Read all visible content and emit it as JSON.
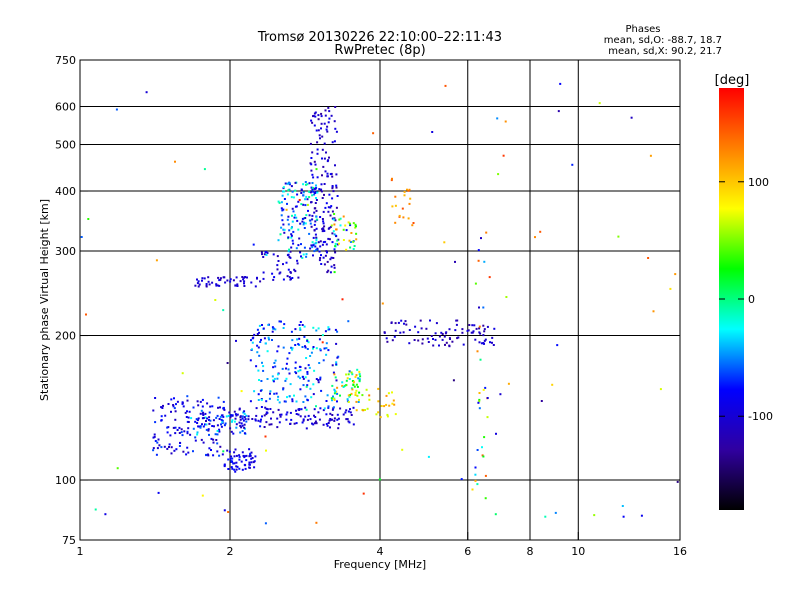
{
  "chart_data": {
    "type": "scatter",
    "title": "Tromsø 20130226 22:10:00–22:11:43",
    "subtitle": "RwPretec (8p)",
    "xlabel": "Frequency [MHz]",
    "ylabel": "Stationary phase Virtual Height [km]",
    "x_scale": "log",
    "y_scale": "log",
    "xlim": [
      1,
      16
    ],
    "ylim": [
      75,
      750
    ],
    "x_ticks": [
      1,
      2,
      4,
      6,
      8,
      10,
      16
    ],
    "y_ticks": [
      75,
      100,
      200,
      300,
      400,
      500,
      600,
      750
    ],
    "x_grid": [
      2,
      4,
      6,
      8,
      10
    ],
    "y_grid": [
      100,
      200,
      300,
      400,
      500,
      600
    ],
    "grid": true,
    "stats": {
      "heading": "Phases",
      "line_o": "mean, sd,O: -88.7, 18.7",
      "line_x": "mean, sd,X: 90.2, 21.7"
    },
    "colorbar": {
      "label": "[deg]",
      "min": -180,
      "max": 180,
      "ticks": [
        100,
        0,
        -100
      ],
      "colors": [
        "#ff0000",
        "#ff8000",
        "#ffff00",
        "#00ff00",
        "#00ffff",
        "#0000ff",
        "#3000a0",
        "#000000"
      ]
    },
    "clusters": [
      {
        "x": [
          1.95,
          2.25
        ],
        "y": [
          104,
          116
        ],
        "count": 60,
        "phase": [
          -110,
          -70
        ]
      },
      {
        "x": [
          1.4,
          1.95
        ],
        "y": [
          112,
          150
        ],
        "count": 140,
        "phase": [
          -120,
          -60
        ]
      },
      {
        "x": [
          1.6,
          2.2
        ],
        "y": [
          124,
          140
        ],
        "count": 60,
        "phase": [
          -110,
          -20
        ]
      },
      {
        "x": [
          2.0,
          3.6
        ],
        "y": [
          128,
          142
        ],
        "count": 130,
        "phase": [
          -120,
          -80
        ]
      },
      {
        "x": [
          2.2,
          2.9
        ],
        "y": [
          145,
          215
        ],
        "count": 140,
        "phase": [
          -100,
          -20
        ]
      },
      {
        "x": [
          2.8,
          3.3
        ],
        "y": [
          140,
          210
        ],
        "count": 70,
        "phase": [
          -110,
          0
        ]
      },
      {
        "x": [
          3.2,
          3.7
        ],
        "y": [
          145,
          170
        ],
        "count": 60,
        "phase": [
          -60,
          120
        ]
      },
      {
        "x": [
          3.5,
          4.4
        ],
        "y": [
          135,
          155
        ],
        "count": 30,
        "phase": [
          60,
          130
        ]
      },
      {
        "x": [
          1.7,
          2.3
        ],
        "y": [
          253,
          265
        ],
        "count": 50,
        "phase": [
          -120,
          -90
        ]
      },
      {
        "x": [
          2.3,
          2.75
        ],
        "y": [
          260,
          300
        ],
        "count": 40,
        "phase": [
          -120,
          -80
        ]
      },
      {
        "x": [
          2.5,
          3.0
        ],
        "y": [
          290,
          420
        ],
        "count": 150,
        "phase": [
          -110,
          0
        ]
      },
      {
        "x": [
          2.9,
          3.3
        ],
        "y": [
          270,
          600
        ],
        "count": 170,
        "phase": [
          -130,
          -80
        ]
      },
      {
        "x": [
          3.2,
          3.6
        ],
        "y": [
          300,
          360
        ],
        "count": 40,
        "phase": [
          -90,
          130
        ]
      },
      {
        "x": [
          4.0,
          6.2
        ],
        "y": [
          190,
          215
        ],
        "count": 70,
        "phase": [
          -130,
          -90
        ]
      },
      {
        "x": [
          6.2,
          6.8
        ],
        "y": [
          190,
          210
        ],
        "count": 20,
        "phase": [
          -130,
          -90
        ]
      },
      {
        "x": [
          6.2,
          6.6
        ],
        "y": [
          90,
          350
        ],
        "count": 30,
        "phase": [
          -120,
          150
        ]
      },
      {
        "x": [
          4.2,
          4.7
        ],
        "y": [
          330,
          440
        ],
        "count": 20,
        "phase": [
          100,
          160
        ]
      },
      {
        "x": [
          1.0,
          16.0
        ],
        "y": [
          80,
          680
        ],
        "count": 90,
        "phase": [
          -140,
          170
        ]
      }
    ]
  }
}
